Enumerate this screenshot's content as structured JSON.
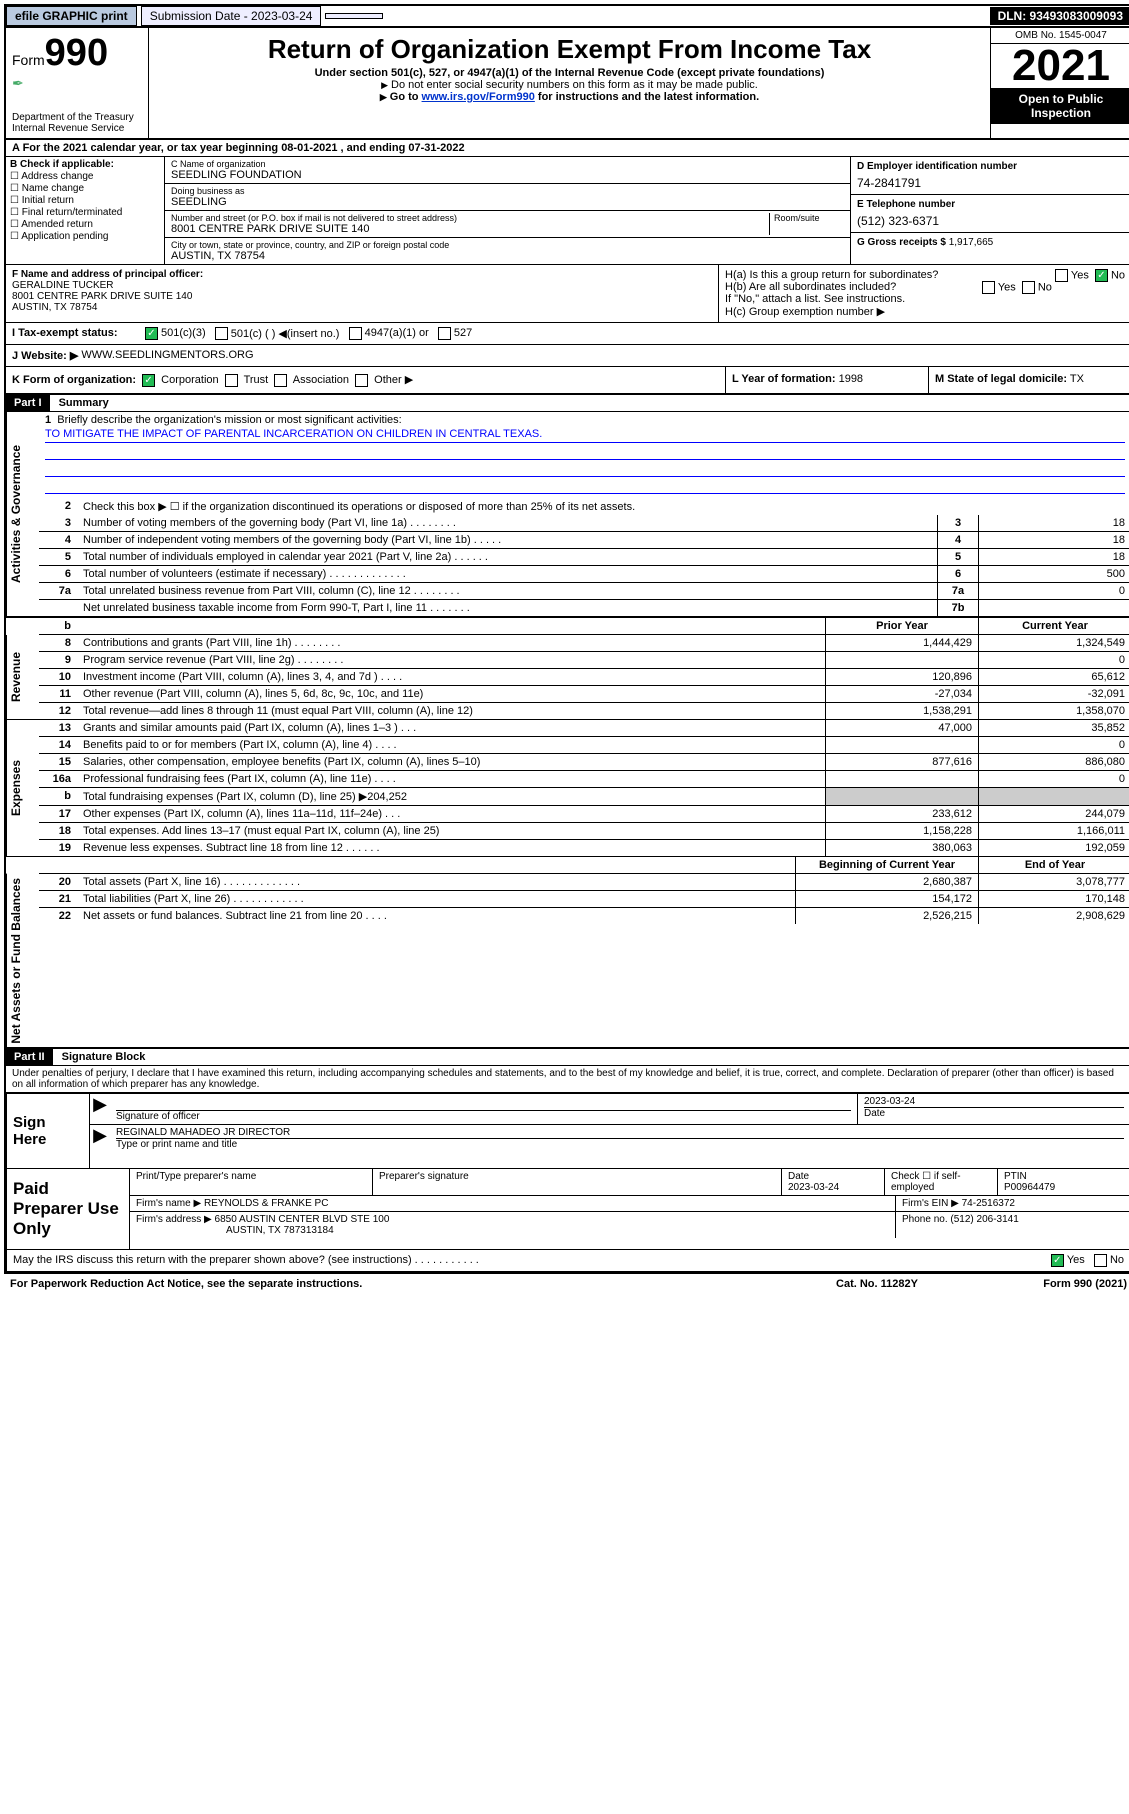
{
  "topbar": {
    "efile": "efile GRAPHIC print",
    "submission_label": "Submission Date - 2023-03-24",
    "dln": "DLN: 93493083009093"
  },
  "header": {
    "form_word": "Form",
    "form_num": "990",
    "dept": "Department of the Treasury",
    "irs": "Internal Revenue Service",
    "title": "Return of Organization Exempt From Income Tax",
    "sub1": "Under section 501(c), 527, or 4947(a)(1) of the Internal Revenue Code (except private foundations)",
    "sub2": "Do not enter social security numbers on this form as it may be made public.",
    "link_pre": "Go to ",
    "link_url": "www.irs.gov/Form990",
    "link_post": " for instructions and the latest information.",
    "omb": "OMB No. 1545-0047",
    "year": "2021",
    "open": "Open to Public Inspection"
  },
  "rowA": "A For the 2021 calendar year, or tax year beginning 08-01-2021   , and ending 07-31-2022",
  "colB": {
    "hdr": "B Check if applicable:",
    "opts": [
      "Address change",
      "Name change",
      "Initial return",
      "Final return/terminated",
      "Amended return",
      "Application pending"
    ]
  },
  "colC": {
    "name_lbl": "C Name of organization",
    "name_val": "SEEDLING FOUNDATION",
    "dba_lbl": "Doing business as",
    "dba_val": "SEEDLING",
    "addr_lbl": "Number and street (or P.O. box if mail is not delivered to street address)",
    "room_lbl": "Room/suite",
    "addr_val": "8001 CENTRE PARK DRIVE SUITE 140",
    "city_lbl": "City or town, state or province, country, and ZIP or foreign postal code",
    "city_val": "AUSTIN, TX  78754"
  },
  "colD": {
    "d_lbl": "D Employer identification number",
    "d_val": "74-2841791",
    "e_lbl": "E Telephone number",
    "e_val": "(512) 323-6371",
    "g_lbl": "G Gross receipts $",
    "g_val": "1,917,665"
  },
  "rowF": {
    "f_lbl": "F Name and address of principal officer:",
    "f_name": "GERALDINE TUCKER",
    "f_addr1": "8001 CENTRE PARK DRIVE SUITE 140",
    "f_addr2": "AUSTIN, TX  78754"
  },
  "rowH": {
    "ha": "H(a)  Is this a group return for subordinates?",
    "hb": "H(b)  Are all subordinates included?",
    "hb_note": "If \"No,\" attach a list. See instructions.",
    "hc": "H(c)  Group exemption number ▶",
    "yes": "Yes",
    "no": "No"
  },
  "rowI": {
    "label": "I   Tax-exempt status:",
    "o1": "501(c)(3)",
    "o2": "501(c) (  ) ◀(insert no.)",
    "o3": "4947(a)(1) or",
    "o4": "527"
  },
  "rowJ": {
    "label": "J   Website: ▶",
    "val": "WWW.SEEDLINGMENTORS.ORG"
  },
  "rowK": {
    "label": "K Form of organization:",
    "corp": "Corporation",
    "trust": "Trust",
    "assoc": "Association",
    "other": "Other ▶"
  },
  "rowL": {
    "label": "L Year of formation:",
    "val": "1998"
  },
  "rowM": {
    "label": "M State of legal domicile:",
    "val": "TX"
  },
  "parts": {
    "p1": "Part I",
    "p1t": "Summary",
    "p2": "Part II",
    "p2t": "Signature Block"
  },
  "vlabels": {
    "gov": "Activities & Governance",
    "rev": "Revenue",
    "exp": "Expenses",
    "net": "Net Assets or Fund Balances"
  },
  "summary": {
    "l1_lbl": "Briefly describe the organization's mission or most significant activities:",
    "l1_val": "TO MITIGATE THE IMPACT OF PARENTAL INCARCERATION ON CHILDREN IN CENTRAL TEXAS.",
    "l2": "Check this box ▶ ☐  if the organization discontinued its operations or disposed of more than 25% of its net assets.",
    "lines": [
      {
        "n": "3",
        "t": "Number of voting members of the governing body (Part VI, line 1a)  .   .   .   .   .   .   .   .",
        "c": "3",
        "v": "18"
      },
      {
        "n": "4",
        "t": "Number of independent voting members of the governing body (Part VI, line 1b)  .   .   .   .   .",
        "c": "4",
        "v": "18"
      },
      {
        "n": "5",
        "t": "Total number of individuals employed in calendar year 2021 (Part V, line 2a)  .   .   .   .   .   .",
        "c": "5",
        "v": "18"
      },
      {
        "n": "6",
        "t": "Total number of volunteers (estimate if necessary)  .   .   .   .   .   .   .   .   .   .   .   .   .",
        "c": "6",
        "v": "500"
      },
      {
        "n": "7a",
        "t": "Total unrelated business revenue from Part VIII, column (C), line 12  .   .   .   .   .   .   .   .",
        "c": "7a",
        "v": "0"
      },
      {
        "n": "",
        "t": "Net unrelated business taxable income from Form 990-T, Part I, line 11  .   .   .   .   .   .   .",
        "c": "7b",
        "v": ""
      }
    ],
    "header_cols": {
      "prior": "Prior Year",
      "current": "Current Year"
    },
    "lineb": "b",
    "revenue": [
      {
        "n": "8",
        "t": "Contributions and grants (Part VIII, line 1h)  .   .   .   .   .   .   .   .",
        "p": "1,444,429",
        "c": "1,324,549"
      },
      {
        "n": "9",
        "t": "Program service revenue (Part VIII, line 2g)  .   .   .   .   .   .   .   .",
        "p": "",
        "c": "0"
      },
      {
        "n": "10",
        "t": "Investment income (Part VIII, column (A), lines 3, 4, and 7d )  .   .   .   .",
        "p": "120,896",
        "c": "65,612"
      },
      {
        "n": "11",
        "t": "Other revenue (Part VIII, column (A), lines 5, 6d, 8c, 9c, 10c, and 11e)",
        "p": "-27,034",
        "c": "-32,091"
      },
      {
        "n": "12",
        "t": "Total revenue—add lines 8 through 11 (must equal Part VIII, column (A), line 12)",
        "p": "1,538,291",
        "c": "1,358,070"
      }
    ],
    "expenses": [
      {
        "n": "13",
        "t": "Grants and similar amounts paid (Part IX, column (A), lines 1–3 )  .   .   .",
        "p": "47,000",
        "c": "35,852"
      },
      {
        "n": "14",
        "t": "Benefits paid to or for members (Part IX, column (A), line 4)  .   .   .   .",
        "p": "",
        "c": "0"
      },
      {
        "n": "15",
        "t": "Salaries, other compensation, employee benefits (Part IX, column (A), lines 5–10)",
        "p": "877,616",
        "c": "886,080"
      },
      {
        "n": "16a",
        "t": "Professional fundraising fees (Part IX, column (A), line 11e)  .   .   .   .",
        "p": "",
        "c": "0"
      },
      {
        "n": "b",
        "t": "Total fundraising expenses (Part IX, column (D), line 25) ▶204,252",
        "p": "GREY",
        "c": "GREY"
      },
      {
        "n": "17",
        "t": "Other expenses (Part IX, column (A), lines 11a–11d, 11f–24e)  .   .   .",
        "p": "233,612",
        "c": "244,079"
      },
      {
        "n": "18",
        "t": "Total expenses. Add lines 13–17 (must equal Part IX, column (A), line 25)",
        "p": "1,158,228",
        "c": "1,166,011"
      },
      {
        "n": "19",
        "t": "Revenue less expenses. Subtract line 18 from line 12  .   .   .   .   .   .",
        "p": "380,063",
        "c": "192,059"
      }
    ],
    "net_hdr": {
      "b": "Beginning of Current Year",
      "e": "End of Year"
    },
    "net": [
      {
        "n": "20",
        "t": "Total assets (Part X, line 16)  .   .   .   .   .   .   .   .   .   .   .   .   .",
        "p": "2,680,387",
        "c": "3,078,777"
      },
      {
        "n": "21",
        "t": "Total liabilities (Part X, line 26)  .   .   .   .   .   .   .   .   .   .   .   .",
        "p": "154,172",
        "c": "170,148"
      },
      {
        "n": "22",
        "t": "Net assets or fund balances. Subtract line 21 from line 20  .   .   .   .",
        "p": "2,526,215",
        "c": "2,908,629"
      }
    ]
  },
  "sigblock": {
    "decl": "Under penalties of perjury, I declare that I have examined this return, including accompanying schedules and statements, and to the best of my knowledge and belief, it is true, correct, and complete. Declaration of preparer (other than officer) is based on all information of which preparer has any knowledge.",
    "sign_here": "Sign Here",
    "sig_officer": "Signature of officer",
    "date": "Date",
    "date_val": "2023-03-24",
    "name_title_lbl": "Type or print name and title",
    "name_title_val": "REGINALD MAHADEO JR DIRECTOR"
  },
  "prep": {
    "title": "Paid Preparer Use Only",
    "h1": "Print/Type preparer's name",
    "h2": "Preparer's signature",
    "h3": "Date",
    "h3v": "2023-03-24",
    "h4": "Check ☐ if self-employed",
    "h5": "PTIN",
    "h5v": "P00964479",
    "firm_name_lbl": "Firm's name    ▶",
    "firm_name_val": "REYNOLDS & FRANKE PC",
    "firm_ein_lbl": "Firm's EIN ▶",
    "firm_ein_val": "74-2516372",
    "firm_addr_lbl": "Firm's address ▶",
    "firm_addr_val": "6850 AUSTIN CENTER BLVD STE 100",
    "firm_city": "AUSTIN, TX  787313184",
    "phone_lbl": "Phone no.",
    "phone_val": "(512) 206-3141"
  },
  "bottom": {
    "discuss": "May the IRS discuss this return with the preparer shown above? (see instructions)  .   .   .   .   .   .   .   .   .   .   .",
    "yes": "Yes",
    "no": "No"
  },
  "footer": {
    "pra": "For Paperwork Reduction Act Notice, see the separate instructions.",
    "cat": "Cat. No. 11282Y",
    "form": "Form 990 (2021)"
  }
}
